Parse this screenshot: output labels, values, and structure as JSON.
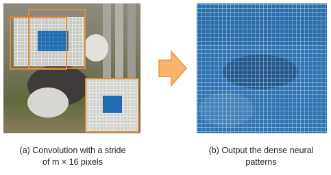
{
  "caption_a": {
    "lines": [
      "(a) Convolution with a stride",
      "of  m × 16 pixels"
    ]
  },
  "caption_b": {
    "lines": [
      "(b) Output the dense neural",
      "patterns"
    ]
  }
}
